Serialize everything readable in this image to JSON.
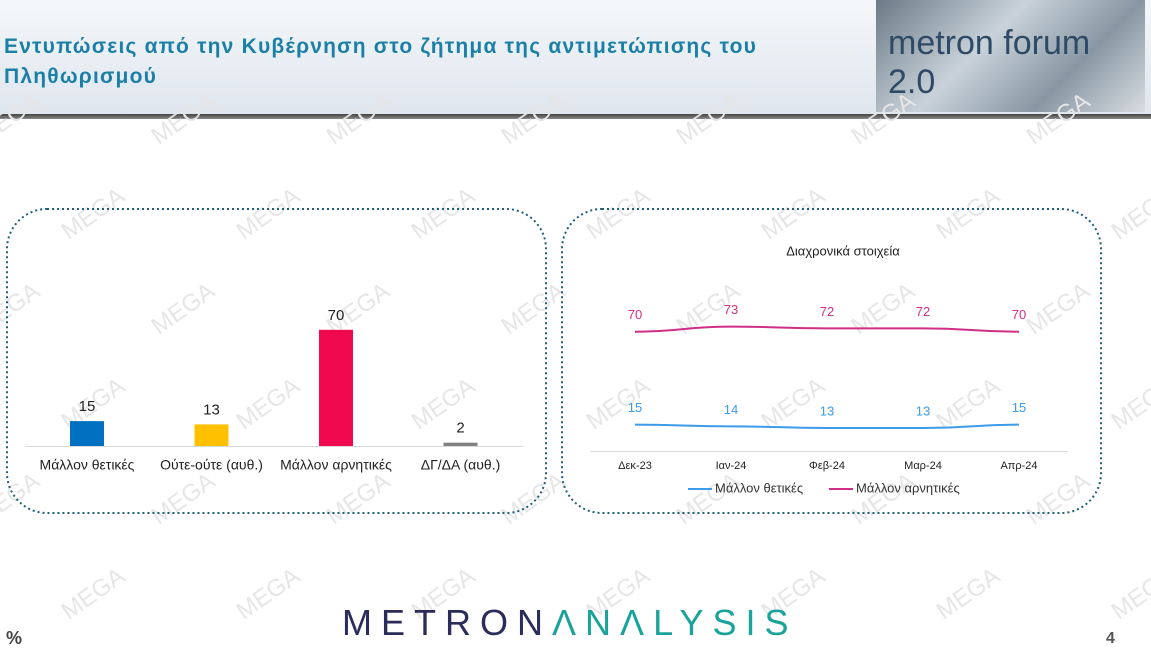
{
  "header": {
    "title": "Εντυπώσεις από την Κυβέρνηση στο ζήτημα της αντιμετώπισης του Πληθωρισμού",
    "logo": "metron forum 2.0"
  },
  "watermark": "MEGA",
  "chart_data": [
    {
      "type": "bar",
      "categories": [
        "Μάλλον θετικές",
        "Ούτε-ούτε (αυθ.)",
        "Μάλλον αρνητικές",
        "ΔΓ/ΔΑ (αυθ.)"
      ],
      "values": [
        15,
        13,
        70,
        2
      ],
      "colors": [
        "#0070c0",
        "#ffc000",
        "#f0094f",
        "#808080"
      ]
    },
    {
      "type": "line",
      "title": "Διαχρονικά στοιχεία",
      "x": [
        "Δεκ-23",
        "Ιαν-24",
        "Φεβ-24",
        "Μαρ-24",
        "Απρ-24"
      ],
      "series": [
        {
          "name": "Μάλλον θετικές",
          "color": "#3d9be9",
          "values": [
            15,
            14,
            13,
            13,
            15
          ]
        },
        {
          "name": "Μάλλον αρνητικές",
          "color": "#d02f86",
          "values": [
            70,
            73,
            72,
            72,
            70
          ]
        }
      ]
    }
  ],
  "footer": {
    "unit": "%",
    "brand_a": "METRON",
    "brand_b": "ΛNΛLYSIS",
    "page": "4"
  }
}
